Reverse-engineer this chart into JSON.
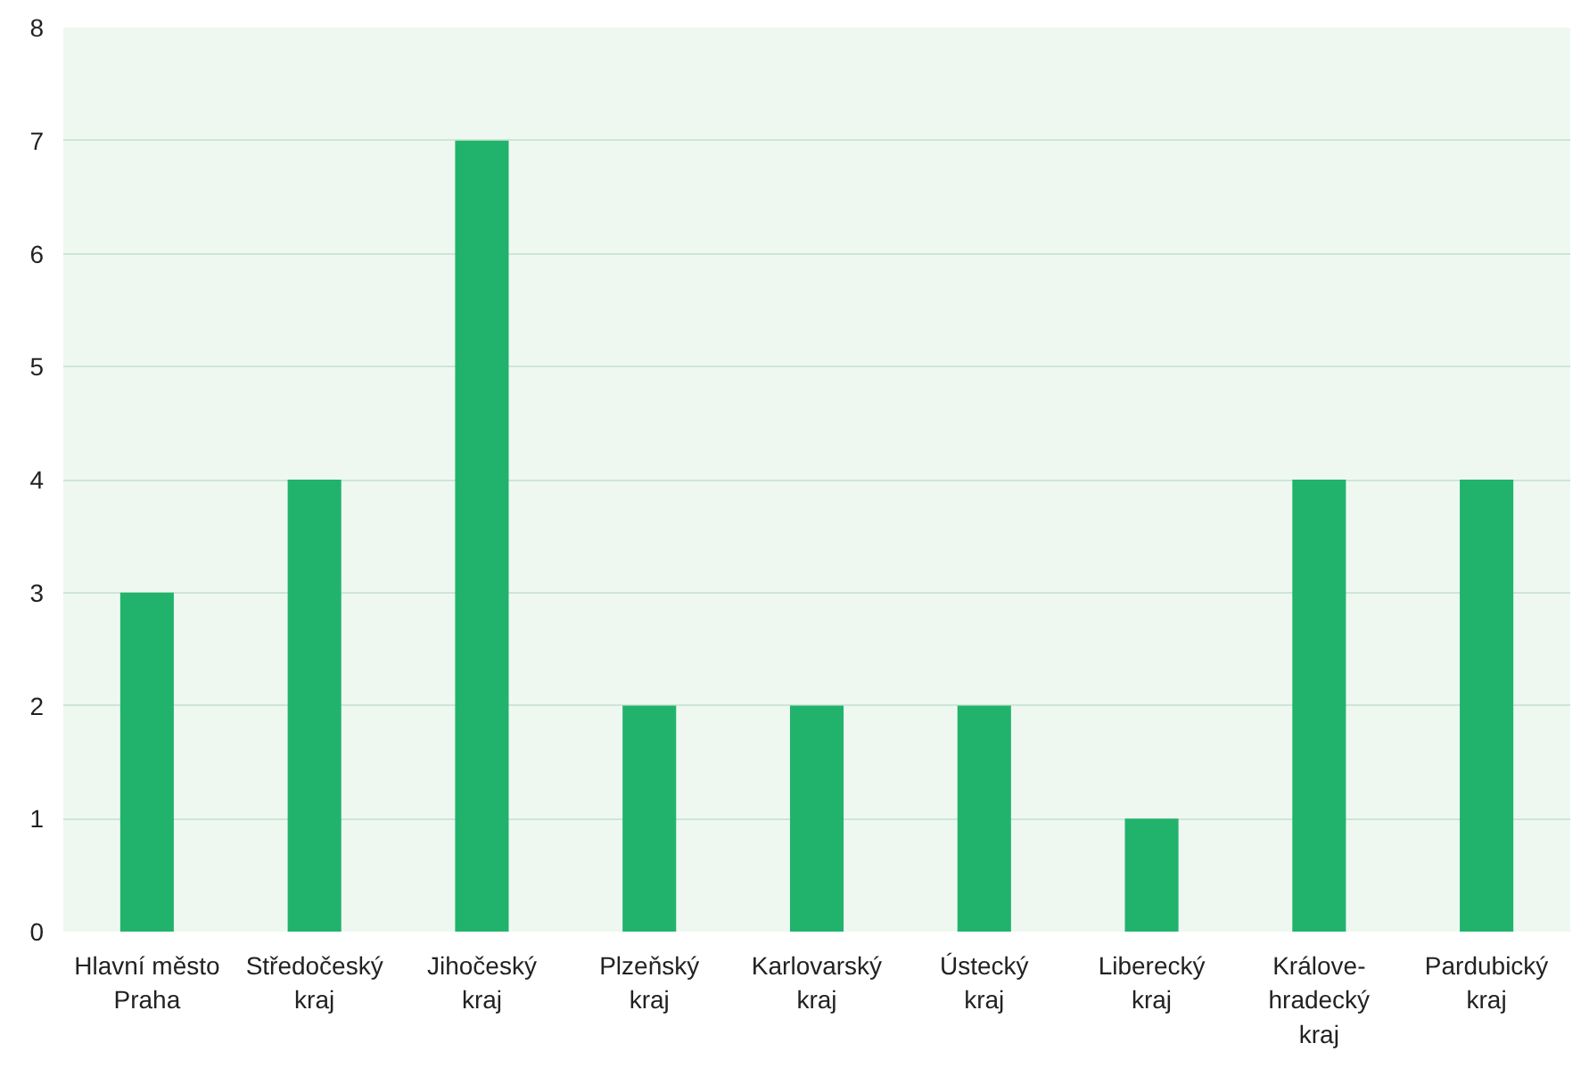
{
  "chart_data": {
    "type": "bar",
    "categories": [
      "Hlavní město\nPraha",
      "Středočeský\nkraj",
      "Jihočeský\nkraj",
      "Plzeňský\nkraj",
      "Karlovarský\nkraj",
      "Ústecký\nkraj",
      "Liberecký\nkraj",
      "Králove-\nhradecký\nkraj",
      "Pardubický\nkraj"
    ],
    "values": [
      3,
      4,
      7,
      2,
      2,
      2,
      1,
      4,
      4
    ],
    "color": "#21b36c",
    "ylim": [
      0,
      8
    ],
    "yticks": [
      0,
      1,
      2,
      3,
      4,
      5,
      6,
      7,
      8
    ],
    "grid": "y"
  }
}
